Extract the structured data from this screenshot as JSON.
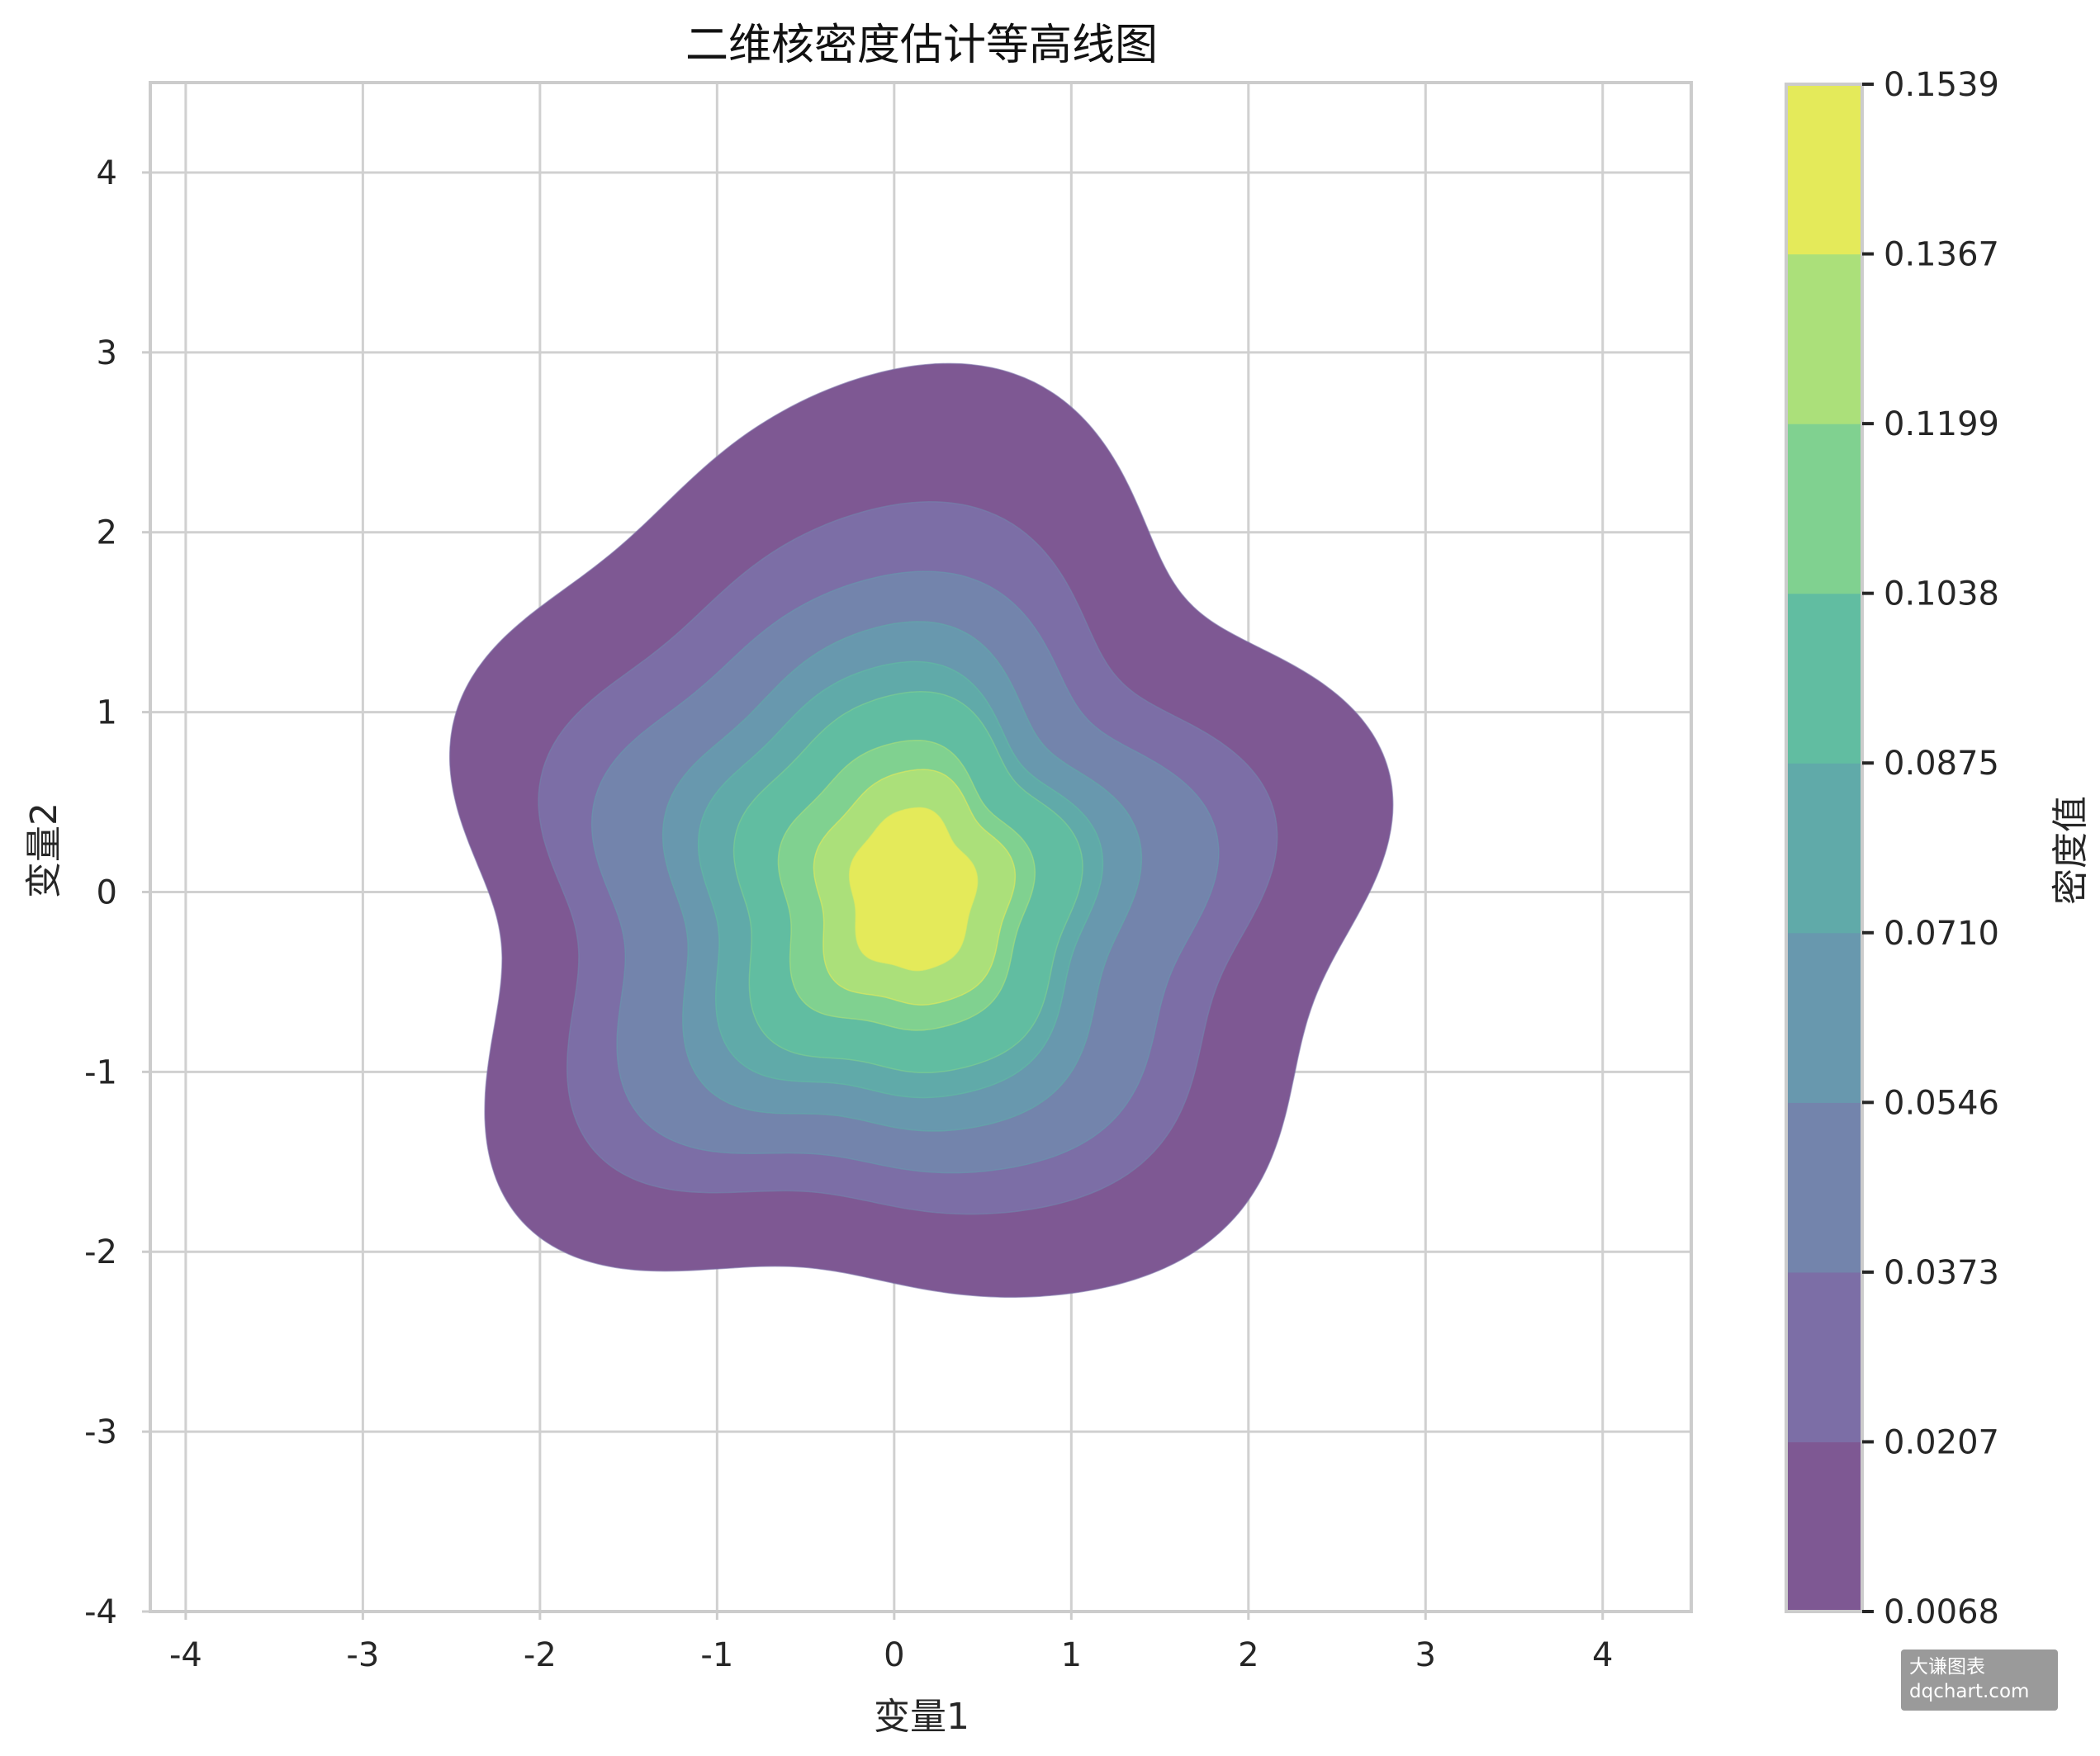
{
  "chart_data": {
    "type": "contour",
    "title": "二维核密度估计等高线图",
    "xlabel": "变量1",
    "ylabel": "变量2",
    "xlim": [
      -4.2,
      4.5
    ],
    "ylim": [
      -4.0,
      4.5
    ],
    "xticks": [
      -4,
      -3,
      -2,
      -1,
      0,
      1,
      2,
      3,
      4
    ],
    "yticks": [
      -4,
      -3,
      -2,
      -1,
      0,
      1,
      2,
      3,
      4
    ],
    "grid": true,
    "colorbar": {
      "label": "密度值",
      "levels": [
        0.0068,
        0.0207,
        0.0373,
        0.0546,
        0.071,
        0.0875,
        0.1038,
        0.1199,
        0.1367,
        0.1539
      ],
      "tick_labels": [
        "0.0068",
        "0.0207",
        "0.0373",
        "0.0546",
        "0.0710",
        "0.0875",
        "0.1038",
        "0.1199",
        "0.1367",
        "0.1539"
      ],
      "colors": [
        "#7e5893",
        "#7c6ea6",
        "#7384ac",
        "#6898ae",
        "#60aaa9",
        "#61bda1",
        "#80d190",
        "#abe07a",
        "#e4ea5a"
      ]
    },
    "peak": {
      "x": 0.1,
      "y": 0.0,
      "value": 0.1539
    },
    "levels_shape": [
      {
        "level": 0.0068,
        "cx": 0.05,
        "cy": 0.15,
        "rx": 2.55,
        "ry": 2.55
      },
      {
        "level": 0.0207,
        "cx": 0.0,
        "cy": 0.05,
        "rx": 2.0,
        "ry": 1.95
      },
      {
        "level": 0.0373,
        "cx": 0.0,
        "cy": 0.0,
        "rx": 1.7,
        "ry": 1.65
      },
      {
        "level": 0.0546,
        "cx": 0.0,
        "cy": 0.0,
        "rx": 1.3,
        "ry": 1.4
      },
      {
        "level": 0.071,
        "cx": 0.0,
        "cy": 0.0,
        "rx": 1.1,
        "ry": 1.2
      },
      {
        "level": 0.0875,
        "cx": 0.05,
        "cy": 0.0,
        "rx": 0.95,
        "ry": 1.05
      },
      {
        "level": 0.1038,
        "cx": 0.05,
        "cy": 0.0,
        "rx": 0.7,
        "ry": 0.8
      },
      {
        "level": 0.1199,
        "cx": 0.1,
        "cy": 0.0,
        "rx": 0.55,
        "ry": 0.65
      },
      {
        "level": 0.1367,
        "cx": 0.1,
        "cy": 0.0,
        "rx": 0.35,
        "ry": 0.45
      }
    ]
  },
  "watermark": {
    "line1": "大谦图表",
    "line2": "dqchart.com"
  }
}
